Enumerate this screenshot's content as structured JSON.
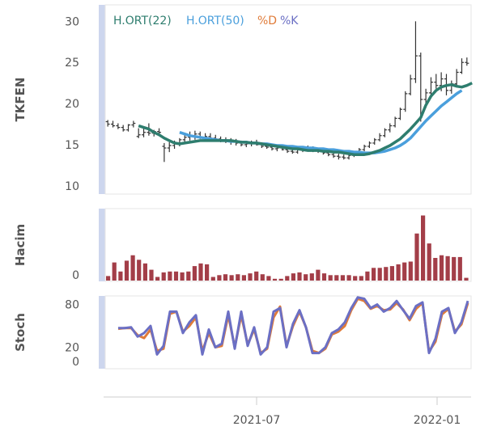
{
  "chart_data": {
    "type": "line",
    "symbol": "TKFEN",
    "panels": {
      "price": {
        "ylabel": "TKFEN",
        "yticks": [
          10,
          15,
          20,
          25,
          30
        ],
        "ylim": [
          9,
          32
        ],
        "legend": [
          {
            "name": "H.ORT(22)",
            "color": "#2e7d6e"
          },
          {
            "name": "H.ORT(50)",
            "color": "#4a9fdc"
          },
          {
            "name": "%D",
            "color": "#e07b39"
          },
          {
            "name": "%K",
            "color": "#6b6fc4"
          }
        ],
        "ohlc": [
          [
            17.8,
            18.0,
            17.2,
            17.5
          ],
          [
            17.5,
            17.9,
            17.1,
            17.3
          ],
          [
            17.3,
            17.6,
            16.9,
            17.1
          ],
          [
            17.1,
            17.4,
            16.6,
            16.8
          ],
          [
            16.8,
            17.5,
            16.6,
            17.4
          ],
          [
            17.4,
            17.9,
            17.1,
            17.6
          ],
          [
            16.0,
            17.0,
            15.8,
            16.2
          ],
          [
            16.2,
            17.2,
            15.9,
            16.5
          ],
          [
            16.5,
            17.6,
            16.1,
            16.4
          ],
          [
            16.4,
            16.8,
            16.0,
            16.6
          ],
          [
            16.6,
            17.0,
            16.2,
            16.5
          ],
          [
            14.8,
            15.2,
            12.9,
            14.6
          ],
          [
            14.6,
            15.3,
            14.1,
            14.9
          ],
          [
            14.9,
            15.5,
            14.5,
            15.1
          ],
          [
            15.1,
            15.8,
            14.8,
            15.6
          ],
          [
            15.6,
            16.2,
            15.2,
            15.9
          ],
          [
            15.9,
            16.6,
            15.5,
            16.1
          ],
          [
            16.1,
            16.7,
            15.6,
            16.3
          ],
          [
            16.3,
            16.6,
            15.7,
            15.9
          ],
          [
            15.9,
            16.4,
            15.5,
            16.0
          ],
          [
            16.0,
            16.4,
            15.6,
            15.8
          ],
          [
            15.8,
            16.2,
            15.4,
            15.7
          ],
          [
            15.7,
            16.0,
            15.3,
            15.6
          ],
          [
            15.6,
            15.9,
            15.2,
            15.5
          ],
          [
            15.5,
            15.8,
            15.0,
            15.3
          ],
          [
            15.3,
            15.7,
            14.9,
            15.2
          ],
          [
            15.2,
            15.5,
            14.8,
            15.0
          ],
          [
            15.0,
            15.4,
            14.7,
            15.1
          ],
          [
            15.1,
            15.5,
            14.8,
            15.2
          ],
          [
            15.2,
            15.6,
            14.9,
            15.0
          ],
          [
            15.0,
            15.3,
            14.6,
            14.8
          ],
          [
            14.8,
            15.1,
            14.5,
            14.7
          ],
          [
            14.7,
            15.0,
            14.3,
            14.5
          ],
          [
            14.5,
            14.9,
            14.2,
            14.6
          ],
          [
            14.6,
            14.9,
            14.3,
            14.4
          ],
          [
            14.4,
            14.7,
            14.0,
            14.2
          ],
          [
            14.2,
            14.5,
            13.9,
            14.1
          ],
          [
            14.1,
            14.6,
            13.9,
            14.4
          ],
          [
            14.4,
            14.8,
            14.1,
            14.6
          ],
          [
            14.6,
            14.9,
            14.3,
            14.5
          ],
          [
            14.5,
            14.8,
            14.1,
            14.3
          ],
          [
            14.3,
            14.6,
            14.0,
            14.2
          ],
          [
            14.2,
            14.5,
            13.8,
            14.0
          ],
          [
            14.0,
            14.3,
            13.6,
            13.8
          ],
          [
            13.8,
            14.1,
            13.4,
            13.6
          ],
          [
            13.6,
            13.9,
            13.2,
            13.5
          ],
          [
            13.5,
            13.8,
            13.2,
            13.4
          ],
          [
            13.4,
            13.9,
            13.2,
            13.7
          ],
          [
            13.7,
            14.2,
            13.5,
            14.0
          ],
          [
            14.0,
            14.6,
            13.8,
            14.4
          ],
          [
            14.4,
            15.0,
            14.2,
            14.8
          ],
          [
            14.8,
            15.4,
            14.6,
            15.2
          ],
          [
            15.2,
            15.8,
            15.0,
            15.6
          ],
          [
            15.6,
            16.4,
            15.4,
            16.1
          ],
          [
            16.1,
            17.0,
            15.9,
            16.8
          ],
          [
            16.8,
            17.6,
            16.5,
            17.3
          ],
          [
            17.3,
            18.4,
            17.1,
            18.2
          ],
          [
            18.2,
            19.5,
            18.0,
            19.3
          ],
          [
            19.3,
            21.5,
            19.0,
            21.2
          ],
          [
            21.2,
            23.5,
            21.0,
            23.0
          ],
          [
            23.0,
            30.0,
            22.5,
            25.8
          ],
          [
            25.8,
            26.2,
            17.8,
            20.5
          ],
          [
            20.5,
            21.8,
            19.5,
            21.3
          ],
          [
            21.3,
            23.2,
            21.0,
            22.6
          ],
          [
            22.6,
            23.6,
            21.8,
            22.2
          ],
          [
            22.2,
            23.8,
            21.5,
            23.0
          ],
          [
            23.0,
            23.6,
            21.0,
            21.6
          ],
          [
            21.6,
            22.8,
            21.2,
            22.4
          ],
          [
            22.4,
            24.2,
            22.0,
            23.8
          ],
          [
            23.8,
            25.5,
            23.6,
            25.0
          ],
          [
            25.0,
            25.6,
            24.6,
            24.9
          ]
        ],
        "sma22": [
          17.3,
          17.1,
          16.9,
          16.5,
          16.2,
          15.8,
          15.5,
          15.2,
          15.1,
          15.2,
          15.3,
          15.4,
          15.5,
          15.5,
          15.5,
          15.5,
          15.5,
          15.5,
          15.5,
          15.4,
          15.3,
          15.3,
          15.2,
          15.2,
          15.1,
          15.0,
          14.9,
          14.8,
          14.7,
          14.6,
          14.5,
          14.5,
          14.4,
          14.3,
          14.3,
          14.3,
          14.2,
          14.2,
          14.1,
          14.1,
          14.0,
          13.9,
          13.8,
          13.8,
          13.8,
          13.9,
          14.1,
          14.3,
          14.6,
          14.9,
          15.3,
          15.7,
          16.3,
          16.9,
          17.6,
          18.3,
          19.8,
          20.9,
          21.6,
          22.0,
          22.2,
          22.3,
          22.1,
          22.0,
          22.2,
          22.5
        ],
        "sma22_start": 6,
        "sma50": [
          16.5,
          16.3,
          16.1,
          16.0,
          15.9,
          15.8,
          15.7,
          15.6,
          15.5,
          15.5,
          15.4,
          15.4,
          15.3,
          15.3,
          15.2,
          15.2,
          15.1,
          15.1,
          15.0,
          14.9,
          14.9,
          14.8,
          14.8,
          14.7,
          14.7,
          14.6,
          14.6,
          14.5,
          14.5,
          14.4,
          14.4,
          14.3,
          14.2,
          14.2,
          14.1,
          14.1,
          14.0,
          14.0,
          14.0,
          14.1,
          14.2,
          14.4,
          14.6,
          14.9,
          15.3,
          15.8,
          16.5,
          17.2,
          17.9,
          18.5,
          19.1,
          19.7,
          20.2,
          20.7,
          21.2,
          21.6
        ],
        "sma50_start": 14
      },
      "volume": {
        "ylabel": "Hacim",
        "yticks": [
          "0"
        ],
        "values": [
          0.25,
          1.0,
          0.5,
          1.1,
          1.4,
          1.15,
          0.95,
          0.6,
          0.2,
          0.45,
          0.5,
          0.5,
          0.45,
          0.5,
          0.8,
          0.95,
          0.9,
          0.2,
          0.3,
          0.35,
          0.3,
          0.35,
          0.3,
          0.4,
          0.5,
          0.35,
          0.25,
          0.1,
          0.1,
          0.25,
          0.4,
          0.45,
          0.35,
          0.4,
          0.6,
          0.4,
          0.3,
          0.3,
          0.3,
          0.3,
          0.25,
          0.25,
          0.5,
          0.7,
          0.7,
          0.75,
          0.8,
          0.9,
          1.0,
          1.05,
          2.6,
          3.6,
          2.05,
          1.25,
          1.4,
          1.35,
          1.3,
          1.3,
          0.15
        ]
      },
      "stochastic": {
        "ylabel": "Stoch",
        "yticks": [
          0,
          20,
          80
        ],
        "ylim": [
          -10,
          92
        ],
        "k": [
          47,
          47,
          48,
          35,
          40,
          50,
          10,
          22,
          70,
          70,
          40,
          55,
          65,
          10,
          45,
          20,
          25,
          70,
          18,
          70,
          22,
          48,
          10,
          20,
          70,
          75,
          20,
          53,
          72,
          48,
          12,
          12,
          20,
          40,
          45,
          55,
          75,
          90,
          88,
          75,
          80,
          70,
          75,
          85,
          72,
          60,
          78,
          83,
          12,
          32,
          70,
          75,
          40,
          55,
          85
        ],
        "d": [
          46,
          47,
          47,
          37,
          33,
          45,
          15,
          18,
          67,
          70,
          42,
          50,
          62,
          15,
          40,
          20,
          22,
          65,
          20,
          65,
          24,
          45,
          12,
          18,
          62,
          77,
          22,
          50,
          70,
          48,
          15,
          12,
          18,
          38,
          42,
          50,
          72,
          88,
          85,
          74,
          78,
          72,
          73,
          82,
          73,
          58,
          74,
          82,
          14,
          28,
          66,
          74,
          42,
          52,
          82
        ]
      }
    },
    "xaxis": {
      "ticks": [
        {
          "label": "2021-07"
        },
        {
          "label": "2022-01"
        }
      ]
    }
  }
}
